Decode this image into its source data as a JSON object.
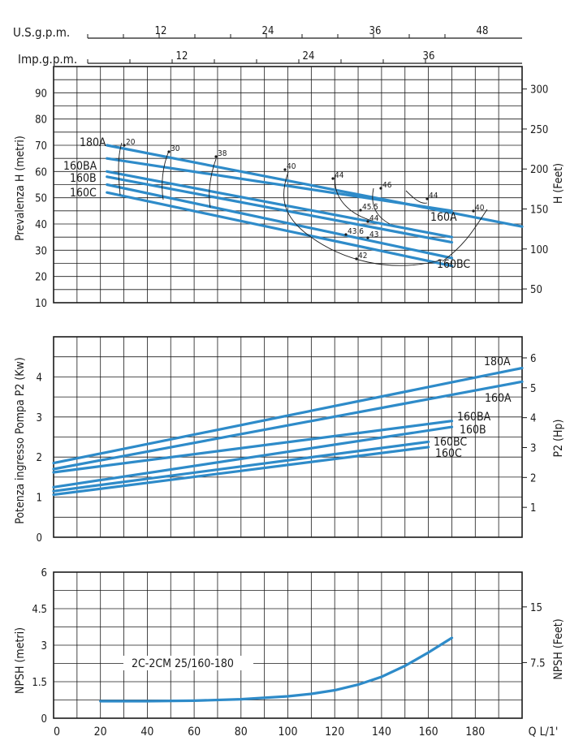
{
  "chart_data": [
    {
      "type": "line",
      "ylabel": "Prevalenza H (metri)",
      "y2label": "H (Feet)",
      "ylim": [
        10,
        100
      ],
      "yticks": [
        10,
        20,
        30,
        40,
        50,
        60,
        70,
        80,
        90
      ],
      "y2ticks": [
        "50",
        "100",
        "150",
        "200",
        "250",
        "300"
      ],
      "xlim": [
        0,
        200
      ],
      "top_axis_1": {
        "label": "U.S.g.p.m.",
        "ticks": [
          "12",
          "24",
          "36",
          "48"
        ]
      },
      "top_axis_2": {
        "label": "Imp.g.p.m.",
        "ticks": [
          "12",
          "24",
          "36"
        ]
      },
      "grid": true,
      "series": [
        {
          "name": "180A",
          "x": [
            20,
            200
          ],
          "y": [
            70,
            39
          ]
        },
        {
          "name": "160A",
          "x": [
            20,
            170
          ],
          "y": [
            65,
            45
          ]
        },
        {
          "name": "160BA",
          "x": [
            20,
            170
          ],
          "y": [
            60,
            35
          ]
        },
        {
          "name": "160B",
          "x": [
            20,
            170
          ],
          "y": [
            58,
            33
          ]
        },
        {
          "name": "160BC",
          "x": [
            20,
            170
          ],
          "y": [
            55,
            27
          ]
        },
        {
          "name": "160C",
          "x": [
            20,
            170
          ],
          "y": [
            52,
            24
          ]
        }
      ],
      "efficiency_labels": [
        "20",
        "30",
        "38",
        "40",
        "44",
        "46",
        "44",
        "40",
        "45.5",
        "44",
        "43.6",
        "43",
        "42"
      ]
    },
    {
      "type": "line",
      "ylabel": "Potenza ingresso Pompa P2 (Kw)",
      "y2label": "P2 (Hp)",
      "ylim": [
        0,
        5
      ],
      "yticks": [
        0,
        1,
        2,
        3,
        4
      ],
      "y2ticks": [
        "1",
        "2",
        "3",
        "4",
        "5",
        "6"
      ],
      "xlim": [
        0,
        200
      ],
      "grid": true,
      "series": [
        {
          "name": "180A",
          "x": [
            0,
            200
          ],
          "y": [
            1.85,
            4.22
          ]
        },
        {
          "name": "160A",
          "x": [
            0,
            200
          ],
          "y": [
            1.7,
            3.88
          ]
        },
        {
          "name": "160BA",
          "x": [
            0,
            170
          ],
          "y": [
            1.62,
            2.9
          ]
        },
        {
          "name": "160B",
          "x": [
            0,
            170
          ],
          "y": [
            1.25,
            2.75
          ]
        },
        {
          "name": "160BC",
          "x": [
            0,
            160
          ],
          "y": [
            1.15,
            2.38
          ]
        },
        {
          "name": "160C",
          "x": [
            0,
            160
          ],
          "y": [
            1.06,
            2.25
          ]
        }
      ]
    },
    {
      "type": "line",
      "ylabel": "NPSH (metri)",
      "y2label": "NPSH (Feet)",
      "xlabel": "Q L/1'",
      "ylim": [
        0,
        6
      ],
      "yticks": [
        "0",
        "1.5",
        "3",
        "4.5",
        "6"
      ],
      "y2ticks": [
        "7.5",
        "15"
      ],
      "xlim": [
        0,
        200
      ],
      "xticks": [
        "0",
        "20",
        "40",
        "60",
        "80",
        "100",
        "120",
        "140",
        "160",
        "180"
      ],
      "grid": true,
      "series": [
        {
          "name": "2C-2CM 25/160-180",
          "x": [
            20,
            40,
            60,
            80,
            100,
            110,
            120,
            130,
            140,
            150,
            160,
            170
          ],
          "y": [
            0.7,
            0.7,
            0.72,
            0.78,
            0.9,
            1.0,
            1.15,
            1.38,
            1.7,
            2.15,
            2.7,
            3.3
          ]
        }
      ]
    }
  ],
  "colors": {
    "curve": "#2e8bc9",
    "grid": "#1a1a1a",
    "text": "#1a1a1a",
    "background": "#ffffff"
  }
}
